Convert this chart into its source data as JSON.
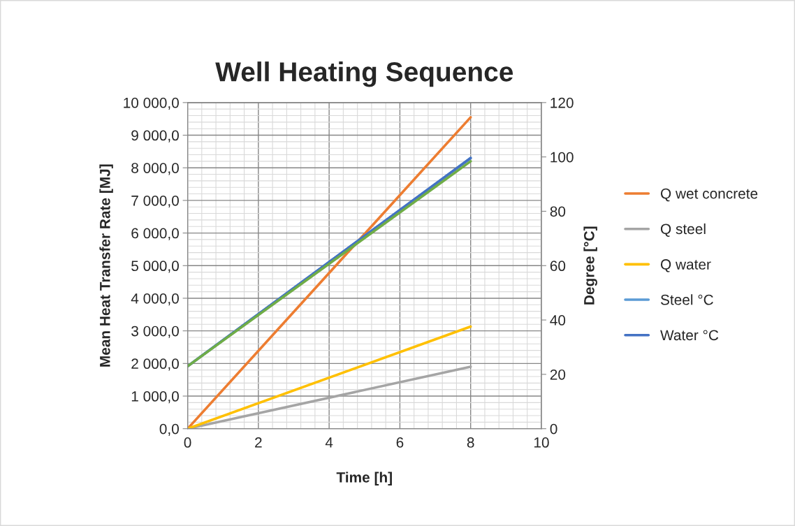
{
  "chart_data": {
    "type": "line",
    "title": "Well Heating Sequence",
    "xlabel": "Time [h]",
    "ylabel": "Mean Heat Transfer Rate [MJ]",
    "y2label": "Degree [°C]",
    "series": [
      {
        "name": "Q wet concrete",
        "color": "#ed7d31",
        "values": [
          0,
          9550
        ]
      },
      {
        "name": "Q steel",
        "color": "#a5a5a5",
        "values": [
          0,
          1900
        ]
      },
      {
        "name": "Q water",
        "color": "#ffc000",
        "values": [
          0,
          3130
        ]
      },
      {
        "name": "Steel °C",
        "color": "#5b9bd5",
        "axis": "y2",
        "values": [
          23,
          99.6
        ]
      },
      {
        "name": "Water °C",
        "color": "#4472c4",
        "axis": "y2",
        "values": [
          23,
          99.6
        ]
      },
      {
        "color": "#70ad47",
        "axis": "y2",
        "values": [
          23,
          98.4
        ]
      }
    ],
    "x": [
      0,
      8
    ],
    "xlim": [
      0,
      10
    ],
    "xticks": [
      0,
      2,
      4,
      6,
      8,
      10
    ],
    "ylim": [
      0,
      10000
    ],
    "yticks": [
      {
        "value": 0,
        "label": "0,0"
      },
      {
        "value": 1000,
        "label": "1 000,0"
      },
      {
        "value": 2000,
        "label": "2 000,0"
      },
      {
        "value": 3000,
        "label": "3 000,0"
      },
      {
        "value": 4000,
        "label": "4 000,0"
      },
      {
        "value": 5000,
        "label": "5 000,0"
      },
      {
        "value": 6000,
        "label": "6 000,0"
      },
      {
        "value": 7000,
        "label": "7 000,0"
      },
      {
        "value": 8000,
        "label": "8 000,0"
      },
      {
        "value": 9000,
        "label": "9 000,0"
      },
      {
        "value": 10000,
        "label": "10 000,0"
      }
    ],
    "y2lim": [
      0,
      120
    ],
    "y2ticks": [
      0,
      20,
      40,
      60,
      80,
      100,
      120
    ],
    "grid": true,
    "legend": "right",
    "marker": "none",
    "line_style": "solid"
  }
}
